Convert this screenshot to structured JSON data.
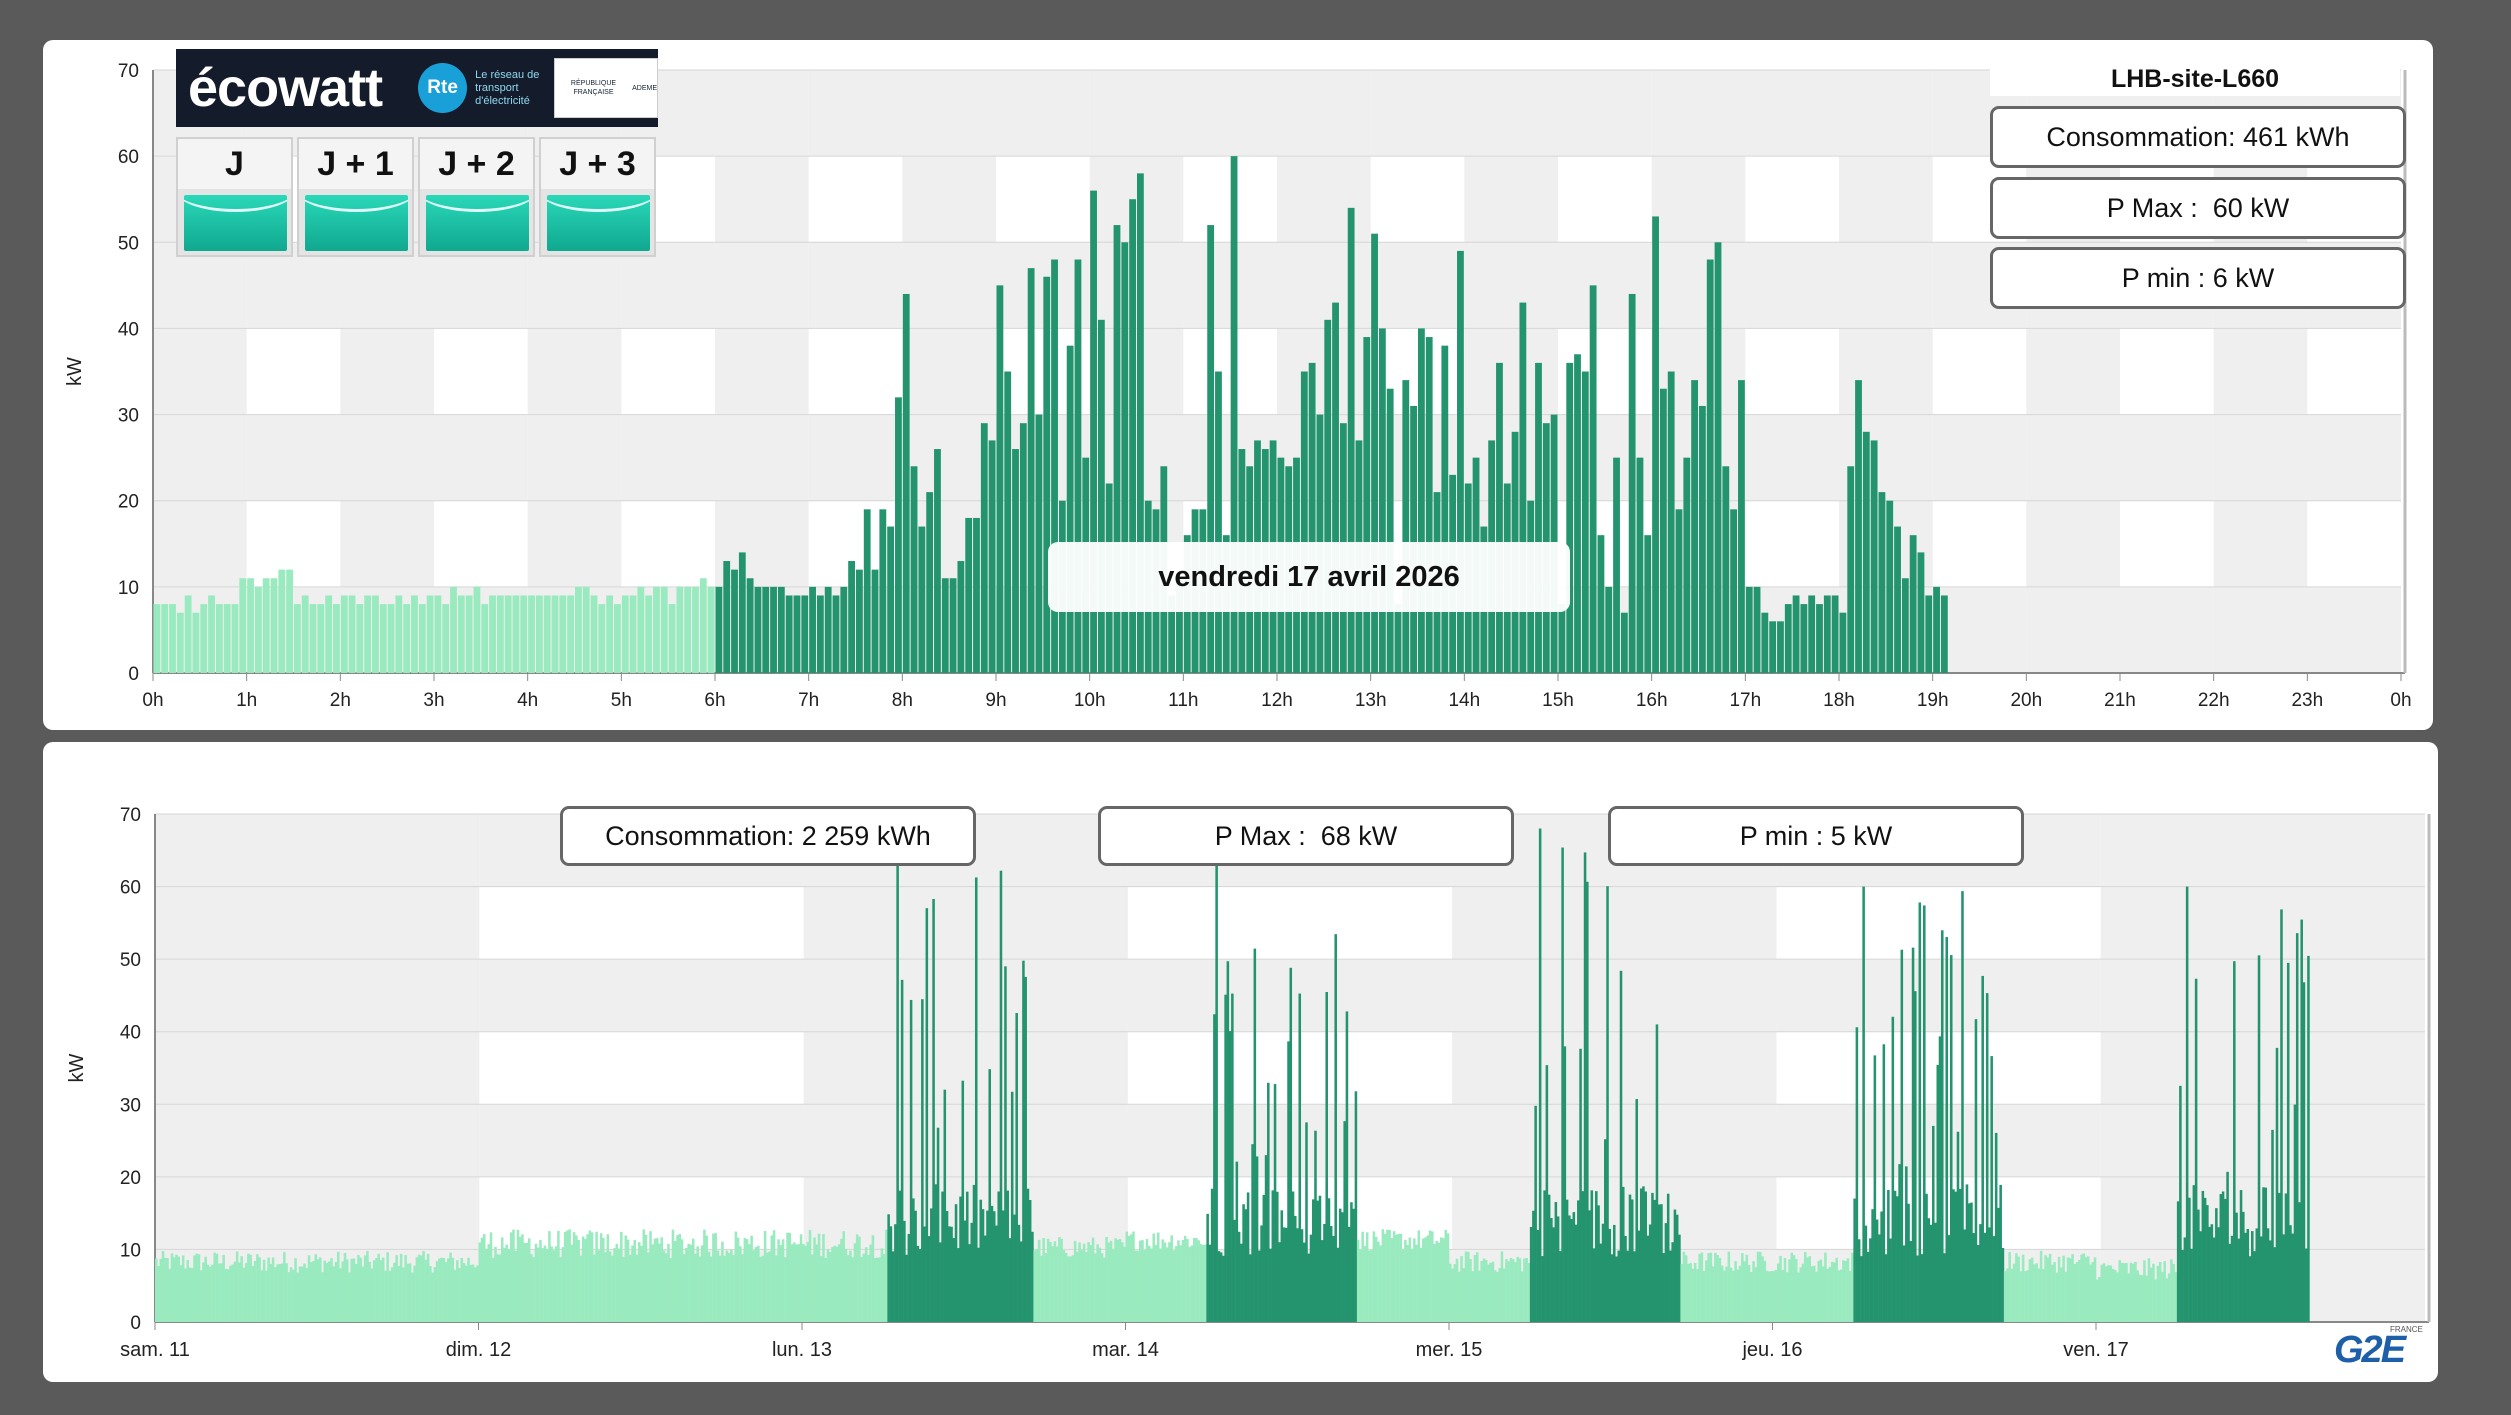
{
  "colors": {
    "light": "#9aeabf",
    "dark": "#24946e",
    "bandGray": "#efefef",
    "axis": "#888888"
  },
  "ecowatt": {
    "logo_text": "écowatt",
    "rte_label": "Rte",
    "rte_text": "Le réseau de transport d'électricité",
    "rf_text": "RÉPUBLIQUE FRANÇAISE",
    "ademe_text": "ADEME",
    "days": [
      {
        "label": "J"
      },
      {
        "label": "J + 1"
      },
      {
        "label": "J + 2"
      },
      {
        "label": "J + 3"
      }
    ],
    "signal_color": "#1bc0a5"
  },
  "top": {
    "site_title": "LHB-site-L660",
    "consommation": "Consommation: 461 kWh",
    "pmax": "P Max :  60 kW",
    "pmin": "P min : 6 kW",
    "date_label": "vendredi 17 avril 2026"
  },
  "bottom": {
    "consommation": "Consommation: 2 259 kWh",
    "pmax": "P Max :  68 kW",
    "pmin": "P min : 5 kW"
  },
  "logo": {
    "g2e": "G2E",
    "g2e_small": "FRANCE"
  },
  "chart_data": [
    {
      "type": "bar",
      "ylabel": "kW",
      "ylim": [
        0,
        70
      ],
      "yticks": [
        0,
        10,
        20,
        30,
        40,
        50,
        60,
        70
      ],
      "xlim": [
        0,
        24
      ],
      "xticks": [
        "0h",
        "1h",
        "2h",
        "3h",
        "4h",
        "5h",
        "6h",
        "7h",
        "8h",
        "9h",
        "10h",
        "11h",
        "12h",
        "13h",
        "14h",
        "15h",
        "16h",
        "17h",
        "18h",
        "19h",
        "20h",
        "21h",
        "22h",
        "23h",
        "0h"
      ],
      "interval_minutes": 5,
      "series": [
        {
          "values": [
            8,
            8,
            8,
            7,
            9,
            7,
            8,
            9,
            8,
            8,
            8,
            11,
            11,
            10,
            11,
            11,
            12,
            12,
            8,
            9,
            8,
            8,
            9,
            8,
            9,
            9,
            8,
            9,
            9,
            8,
            8,
            9,
            8,
            9,
            8,
            9,
            9,
            8,
            10,
            9,
            9,
            10,
            8,
            9,
            9,
            9,
            9,
            9,
            9,
            9,
            9,
            9,
            9,
            9,
            10,
            10,
            9,
            8,
            9,
            8,
            9,
            9,
            10,
            9,
            10,
            10,
            8,
            10,
            10,
            10,
            11,
            10,
            10,
            13,
            12,
            14,
            11,
            10,
            10,
            10,
            10,
            9,
            9,
            9,
            10,
            9,
            10,
            9,
            10,
            13,
            12,
            19,
            12,
            19,
            17,
            32,
            44,
            24,
            17,
            21,
            26,
            11,
            11,
            13,
            18,
            18,
            29,
            27,
            45,
            35,
            26,
            29,
            47,
            30,
            46,
            48,
            20,
            38,
            48,
            25,
            56,
            41,
            22,
            52,
            50,
            55,
            58,
            20,
            19,
            24,
            9,
            11,
            16,
            19,
            19,
            52,
            35,
            16,
            60,
            26,
            24,
            27,
            26,
            27,
            25,
            24,
            25,
            35,
            36,
            30,
            41,
            43,
            29,
            54,
            27,
            39,
            51,
            40,
            33,
            8,
            34,
            31,
            40,
            39,
            21,
            38,
            23,
            49,
            22,
            25,
            17,
            27,
            36,
            22,
            28,
            43,
            20,
            36,
            29,
            30,
            8,
            36,
            37,
            35,
            45,
            16,
            10,
            25,
            7,
            44,
            25,
            16,
            53,
            33,
            35,
            19,
            25,
            34,
            31,
            48,
            50,
            24,
            19,
            34,
            10,
            10,
            7,
            6,
            6,
            8,
            9,
            8,
            9,
            8,
            9,
            9,
            7,
            24,
            34,
            28,
            27,
            21,
            20,
            17,
            11,
            16,
            14,
            9,
            10,
            9
          ]
        }
      ],
      "highlight_start_hour": 6
    },
    {
      "type": "bar",
      "ylabel": "kW",
      "ylim": [
        0,
        70
      ],
      "yticks": [
        0,
        10,
        20,
        30,
        40,
        50,
        60,
        70
      ],
      "xlim": [
        0,
        7
      ],
      "xticks": [
        "sam. 11",
        "dim. 12",
        "lun. 13",
        "mar. 14",
        "mer. 15",
        "jeu. 16",
        "ven. 17"
      ],
      "days": [
        {
          "label": "sam. 11",
          "base": 8,
          "peak": 0
        },
        {
          "label": "dim. 12",
          "base": 10,
          "peak": 0
        },
        {
          "label": "lun. 13",
          "base": 10,
          "peak": 63,
          "dark_start": 0.26,
          "dark_end": 0.71
        },
        {
          "label": "mar. 14",
          "base": 11,
          "peak": 63,
          "dark_start": 0.25,
          "dark_end": 0.71
        },
        {
          "label": "mer. 15",
          "base": 8,
          "peak": 68,
          "dark_start": 0.25,
          "dark_end": 0.71
        },
        {
          "label": "jeu. 16",
          "base": 8,
          "peak": 60,
          "dark_start": 0.25,
          "dark_end": 0.71
        },
        {
          "label": "ven. 17",
          "base": 7,
          "peak": 60,
          "dark_start": 0.25,
          "dark_end": 0.66
        }
      ],
      "end_day_fraction": 6.66
    }
  ]
}
